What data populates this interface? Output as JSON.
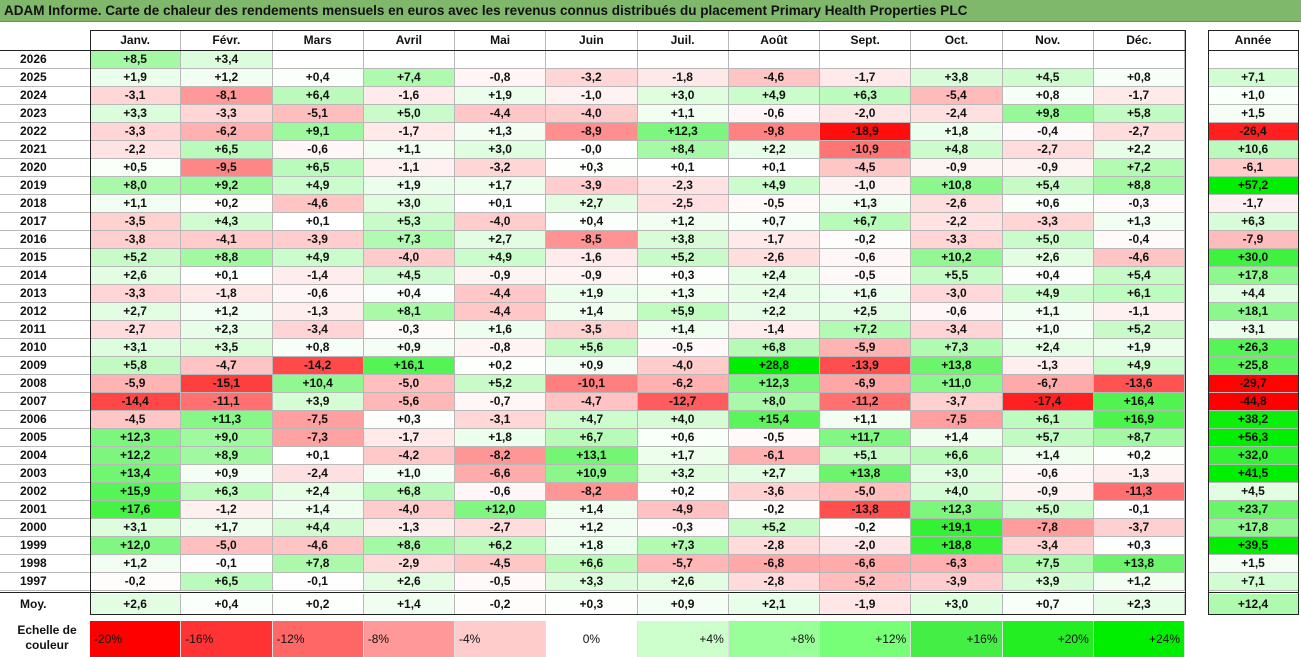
{
  "title": "ADAM Informe. Carte de chaleur des rendements mensuels en euros avec les revenus connus distribués du placement Primary Health Properties PLC",
  "chart_data": {
    "type": "heatmap",
    "columns": [
      "Janv.",
      "Févr.",
      "Mars",
      "Avril",
      "Mai",
      "Juin",
      "Juil.",
      "Août",
      "Sept.",
      "Oct.",
      "Nov.",
      "Déc."
    ],
    "year_column": "Année",
    "rows": [
      {
        "year": "2026",
        "months": [
          "+8,5",
          "+3,4",
          "",
          "",
          "",
          "",
          "",
          "",
          "",
          "",
          "",
          ""
        ],
        "annual": ""
      },
      {
        "year": "2025",
        "months": [
          "+1,9",
          "+1,2",
          "+0,4",
          "+7,4",
          "-0,8",
          "-3,2",
          "-1,8",
          "-4,6",
          "-1,7",
          "+3,8",
          "+4,5",
          "+0,8"
        ],
        "annual": "+7,1"
      },
      {
        "year": "2024",
        "months": [
          "-3,1",
          "-8,1",
          "+6,4",
          "-1,6",
          "+1,9",
          "-1,0",
          "+3,0",
          "+4,9",
          "+6,3",
          "-5,4",
          "+0,8",
          "-1,7"
        ],
        "annual": "+1,0"
      },
      {
        "year": "2023",
        "months": [
          "+3,3",
          "-3,3",
          "-5,1",
          "+5,0",
          "-4,4",
          "-4,0",
          "+1,1",
          "-0,6",
          "-2,0",
          "-2,4",
          "+9,8",
          "+5,8"
        ],
        "annual": "+1,5"
      },
      {
        "year": "2022",
        "months": [
          "-3,3",
          "-6,2",
          "+9,1",
          "-1,7",
          "+1,3",
          "-8,9",
          "+12,3",
          "-9,8",
          "-18,9",
          "+1,8",
          "-0,4",
          "-2,7"
        ],
        "annual": "-26,4"
      },
      {
        "year": "2021",
        "months": [
          "-2,2",
          "+6,5",
          "-0,6",
          "+1,1",
          "+3,0",
          "-0,0",
          "+8,4",
          "+2,2",
          "-10,9",
          "+4,8",
          "-2,7",
          "+2,2"
        ],
        "annual": "+10,6"
      },
      {
        "year": "2020",
        "months": [
          "+0,5",
          "-9,5",
          "+6,5",
          "-1,1",
          "-3,2",
          "+0,3",
          "+0,1",
          "+0,1",
          "-4,5",
          "-0,9",
          "-0,9",
          "+7,2"
        ],
        "annual": "-6,1"
      },
      {
        "year": "2019",
        "months": [
          "+8,0",
          "+9,2",
          "+4,9",
          "+1,9",
          "+1,7",
          "-3,9",
          "-2,3",
          "+4,9",
          "-1,0",
          "+10,8",
          "+5,4",
          "+8,8"
        ],
        "annual": "+57,2"
      },
      {
        "year": "2018",
        "months": [
          "+1,1",
          "+0,2",
          "-4,6",
          "+3,0",
          "+0,1",
          "+2,7",
          "-2,5",
          "-0,5",
          "+1,3",
          "-2,6",
          "+0,6",
          "-0,3"
        ],
        "annual": "-1,7"
      },
      {
        "year": "2017",
        "months": [
          "-3,5",
          "+4,3",
          "+0,1",
          "+5,3",
          "-4,0",
          "+0,4",
          "+1,2",
          "+0,7",
          "+6,7",
          "-2,2",
          "-3,3",
          "+1,3"
        ],
        "annual": "+6,3"
      },
      {
        "year": "2016",
        "months": [
          "-3,8",
          "-4,1",
          "-3,9",
          "+7,3",
          "+2,7",
          "-8,5",
          "+3,8",
          "-1,7",
          "-0,2",
          "-3,3",
          "+5,0",
          "-0,4"
        ],
        "annual": "-7,9"
      },
      {
        "year": "2015",
        "months": [
          "+5,2",
          "+8,8",
          "+4,9",
          "-4,0",
          "+4,9",
          "-1,6",
          "+5,2",
          "-2,6",
          "-0,6",
          "+10,2",
          "+2,6",
          "-4,6"
        ],
        "annual": "+30,0"
      },
      {
        "year": "2014",
        "months": [
          "+2,6",
          "+0,1",
          "-1,4",
          "+4,5",
          "-0,9",
          "-0,9",
          "+0,3",
          "+2,4",
          "-0,5",
          "+5,5",
          "+0,4",
          "+5,4"
        ],
        "annual": "+17,8"
      },
      {
        "year": "2013",
        "months": [
          "-3,3",
          "-1,8",
          "-0,6",
          "+0,4",
          "-4,4",
          "+1,9",
          "+1,3",
          "+2,4",
          "+1,6",
          "-3,0",
          "+4,9",
          "+6,1"
        ],
        "annual": "+4,4"
      },
      {
        "year": "2012",
        "months": [
          "+2,7",
          "+1,2",
          "-1,3",
          "+8,1",
          "-4,4",
          "+1,4",
          "+5,9",
          "+2,2",
          "+2,5",
          "-0,6",
          "+1,1",
          "-1,1"
        ],
        "annual": "+18,1"
      },
      {
        "year": "2011",
        "months": [
          "-2,7",
          "+2,3",
          "-3,4",
          "-0,3",
          "+1,6",
          "-3,5",
          "+1,4",
          "-1,4",
          "+7,2",
          "-3,4",
          "+1,0",
          "+5,2"
        ],
        "annual": "+3,1"
      },
      {
        "year": "2010",
        "months": [
          "+3,1",
          "+3,5",
          "+0,8",
          "+0,9",
          "-0,8",
          "+5,6",
          "-0,5",
          "+6,8",
          "-5,9",
          "+7,3",
          "+2,4",
          "+1,9"
        ],
        "annual": "+26,3"
      },
      {
        "year": "2009",
        "months": [
          "+5,8",
          "-4,7",
          "-14,2",
          "+16,1",
          "+0,2",
          "+0,9",
          "-4,0",
          "+28,8",
          "-13,9",
          "+13,8",
          "-1,3",
          "+4,9"
        ],
        "annual": "+25,8"
      },
      {
        "year": "2008",
        "months": [
          "-5,9",
          "-15,1",
          "+10,4",
          "-5,0",
          "+5,2",
          "-10,1",
          "-6,2",
          "+12,3",
          "-6,9",
          "+11,0",
          "-6,7",
          "-13,6"
        ],
        "annual": "-29,7"
      },
      {
        "year": "2007",
        "months": [
          "-14,4",
          "-11,1",
          "+3,9",
          "-5,6",
          "-0,7",
          "-4,7",
          "-12,7",
          "+8,0",
          "-11,2",
          "-3,7",
          "-17,4",
          "+16,4"
        ],
        "annual": "-44,8"
      },
      {
        "year": "2006",
        "months": [
          "-4,5",
          "+11,3",
          "-7,5",
          "+0,3",
          "-3,1",
          "+4,7",
          "+4,0",
          "+15,4",
          "+1,1",
          "-7,5",
          "+6,1",
          "+16,9"
        ],
        "annual": "+38,2"
      },
      {
        "year": "2005",
        "months": [
          "+12,3",
          "+9,0",
          "-7,3",
          "-1,7",
          "+1,8",
          "+6,7",
          "+0,6",
          "-0,5",
          "+11,7",
          "+1,4",
          "+5,7",
          "+8,7"
        ],
        "annual": "+56,3"
      },
      {
        "year": "2004",
        "months": [
          "+12,2",
          "+8,9",
          "+0,1",
          "-4,2",
          "-8,2",
          "+13,1",
          "+1,7",
          "-6,1",
          "+5,1",
          "+6,6",
          "+1,4",
          "+0,2"
        ],
        "annual": "+32,0"
      },
      {
        "year": "2003",
        "months": [
          "+13,4",
          "+0,9",
          "-2,4",
          "+1,0",
          "-6,6",
          "+10,9",
          "+3,2",
          "+2,7",
          "+13,8",
          "+3,0",
          "-0,6",
          "-1,3"
        ],
        "annual": "+41,5"
      },
      {
        "year": "2002",
        "months": [
          "+15,9",
          "+6,3",
          "+2,4",
          "+6,8",
          "-0,6",
          "-8,2",
          "+0,2",
          "-3,6",
          "-5,0",
          "+4,0",
          "-0,9",
          "-11,3"
        ],
        "annual": "+4,5"
      },
      {
        "year": "2001",
        "months": [
          "+17,6",
          "-1,2",
          "+1,4",
          "-4,0",
          "+12,0",
          "+1,4",
          "-4,9",
          "-0,2",
          "-13,8",
          "+12,3",
          "+5,0",
          "-0,1"
        ],
        "annual": "+23,7"
      },
      {
        "year": "2000",
        "months": [
          "+3,1",
          "+1,7",
          "+4,4",
          "-1,3",
          "-2,7",
          "+1,2",
          "-0,3",
          "+5,2",
          "-0,2",
          "+19,1",
          "-7,8",
          "-3,7"
        ],
        "annual": "+17,8"
      },
      {
        "year": "1999",
        "months": [
          "+12,0",
          "-5,0",
          "-4,6",
          "+8,6",
          "+6,2",
          "+1,8",
          "+7,3",
          "-2,8",
          "-2,0",
          "+18,8",
          "-3,4",
          "+0,3"
        ],
        "annual": "+39,5"
      },
      {
        "year": "1998",
        "months": [
          "+1,2",
          "-0,1",
          "+7,8",
          "-2,9",
          "-4,5",
          "+6,6",
          "-5,7",
          "-6,8",
          "-6,6",
          "-6,3",
          "+7,5",
          "+13,8"
        ],
        "annual": "+1,5"
      },
      {
        "year": "1997",
        "months": [
          "-0,2",
          "+6,5",
          "-0,1",
          "+2,6",
          "-0,5",
          "+3,3",
          "+2,6",
          "-2,8",
          "-5,2",
          "-3,9",
          "+3,9",
          "+1,2"
        ],
        "annual": "+7,1"
      }
    ],
    "average": {
      "label": "Moy.",
      "months": [
        "+2,6",
        "+0,4",
        "+0,2",
        "+1,4",
        "-0,2",
        "+0,3",
        "+0,9",
        "+2,1",
        "-1,9",
        "+3,0",
        "+0,7",
        "+2,3"
      ],
      "annual": "+12,4"
    },
    "legend": {
      "label_line1": "Echelle de",
      "label_line2": "couleur",
      "stops": [
        {
          "label": "-20%",
          "value": -20,
          "color": "#ff0000"
        },
        {
          "label": "-16%",
          "value": -16,
          "color": "#ff3333"
        },
        {
          "label": "-12%",
          "value": -12,
          "color": "#ff6666"
        },
        {
          "label": "-8%",
          "value": -8,
          "color": "#ff9999"
        },
        {
          "label": "-4%",
          "value": -4,
          "color": "#ffcccc"
        },
        {
          "label": "0%",
          "value": 0,
          "color": "#ffffff"
        },
        {
          "label": "+4%",
          "value": 4,
          "color": "#ccffcc"
        },
        {
          "label": "+8%",
          "value": 8,
          "color": "#99ff99"
        },
        {
          "label": "+12%",
          "value": 12,
          "color": "#77ff77"
        },
        {
          "label": "+16%",
          "value": 16,
          "color": "#44ee44"
        },
        {
          "label": "+20%",
          "value": 20,
          "color": "#22ee22"
        },
        {
          "label": "+24%",
          "value": 24,
          "color": "#00ee00"
        }
      ]
    }
  }
}
